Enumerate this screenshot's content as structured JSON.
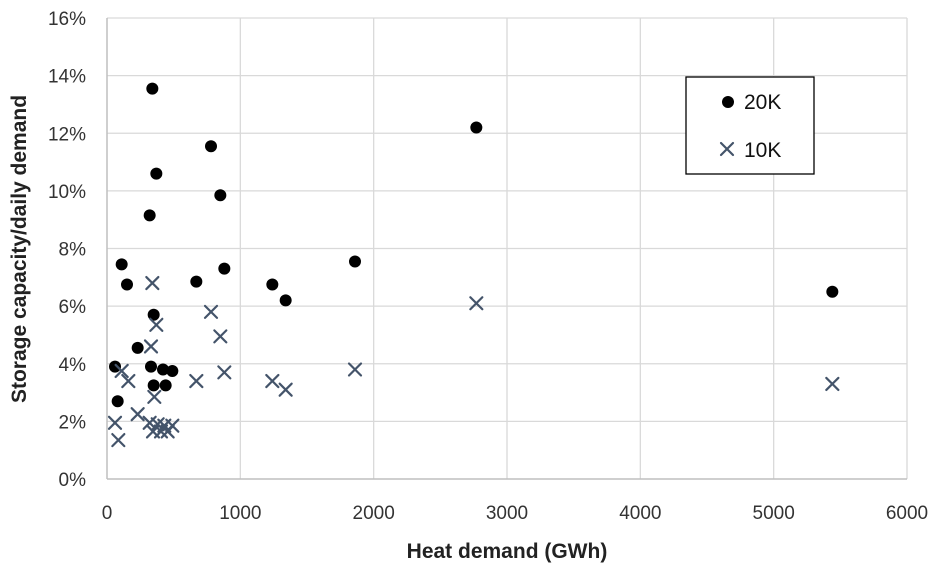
{
  "chart_data": {
    "type": "scatter",
    "title": "",
    "xlabel": "Heat demand (GWh)",
    "ylabel": "Storage capacity/daily demand",
    "xlim": [
      0,
      6000
    ],
    "ylim": [
      0,
      16
    ],
    "x_ticks": [
      "0",
      "1000",
      "2000",
      "3000",
      "4000",
      "5000",
      "6000"
    ],
    "y_ticks": [
      "0%",
      "2%",
      "4%",
      "6%",
      "8%",
      "10%",
      "12%",
      "14%",
      "16%"
    ],
    "grid": true,
    "legend_position": "top-right",
    "series": [
      {
        "name": "20K",
        "marker": "circle",
        "color": "#000000",
        "points": [
          [
            60,
            3.9
          ],
          [
            80,
            2.7
          ],
          [
            110,
            7.45
          ],
          [
            150,
            6.75
          ],
          [
            230,
            4.55
          ],
          [
            320,
            9.15
          ],
          [
            330,
            3.9
          ],
          [
            340,
            13.55
          ],
          [
            350,
            5.7
          ],
          [
            350,
            3.25
          ],
          [
            370,
            10.6
          ],
          [
            420,
            3.8
          ],
          [
            440,
            3.25
          ],
          [
            490,
            3.75
          ],
          [
            670,
            6.85
          ],
          [
            780,
            11.55
          ],
          [
            850,
            9.85
          ],
          [
            880,
            7.3
          ],
          [
            1240,
            6.75
          ],
          [
            1340,
            6.2
          ],
          [
            1860,
            7.55
          ],
          [
            2770,
            12.2
          ],
          [
            5440,
            6.5
          ]
        ]
      },
      {
        "name": "10K",
        "marker": "x",
        "color": "#44546a",
        "points": [
          [
            60,
            1.95
          ],
          [
            85,
            1.35
          ],
          [
            110,
            3.75
          ],
          [
            160,
            3.4
          ],
          [
            230,
            2.25
          ],
          [
            320,
            1.95
          ],
          [
            330,
            4.6
          ],
          [
            340,
            6.8
          ],
          [
            345,
            1.65
          ],
          [
            355,
            2.85
          ],
          [
            370,
            5.35
          ],
          [
            380,
            1.9
          ],
          [
            405,
            1.65
          ],
          [
            430,
            1.85
          ],
          [
            455,
            1.65
          ],
          [
            490,
            1.85
          ],
          [
            670,
            3.4
          ],
          [
            780,
            5.8
          ],
          [
            850,
            4.95
          ],
          [
            880,
            3.7
          ],
          [
            1240,
            3.4
          ],
          [
            1340,
            3.1
          ],
          [
            1860,
            3.8
          ],
          [
            2770,
            6.1
          ],
          [
            5440,
            3.3
          ]
        ]
      }
    ]
  }
}
